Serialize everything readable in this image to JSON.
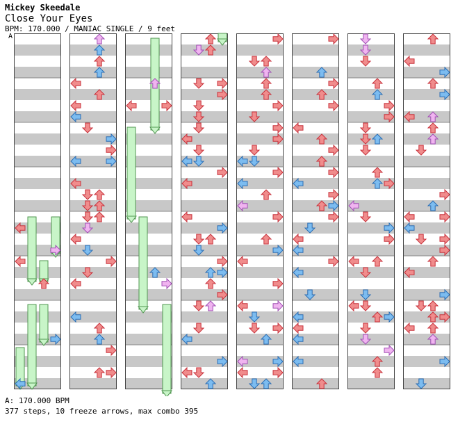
{
  "header": {
    "artist": "Mickey Skeedale",
    "title": "Close Your Eyes",
    "meta": "BPM: 170.000 / MANIAC SINGLE / 9 feet",
    "section_marker": "A"
  },
  "footer": {
    "bpm_line": "A: 170.000 BPM",
    "stats_line": "377 steps, 10 freeze arrows, max combo 395"
  },
  "colors": {
    "red": "#f08c8c",
    "red_stroke": "#c8323c",
    "blue": "#7cbcf0",
    "blue_stroke": "#2c6eb4",
    "pink": "#f0b4f0",
    "pink_stroke": "#a050b4",
    "freeze_fill": "#c8f5c8",
    "freeze_stroke": "#509650",
    "stripe": "#c8c8c8"
  },
  "chart_data": {
    "type": "step_chart",
    "columns": 8,
    "measures_per_column": 8,
    "lanes": [
      "left",
      "down",
      "up",
      "right"
    ],
    "steps": 377,
    "freeze_arrows": 10,
    "max_combo": 395,
    "bpm": 170.0,
    "difficulty": "MANIAC SINGLE",
    "feet": 9
  }
}
